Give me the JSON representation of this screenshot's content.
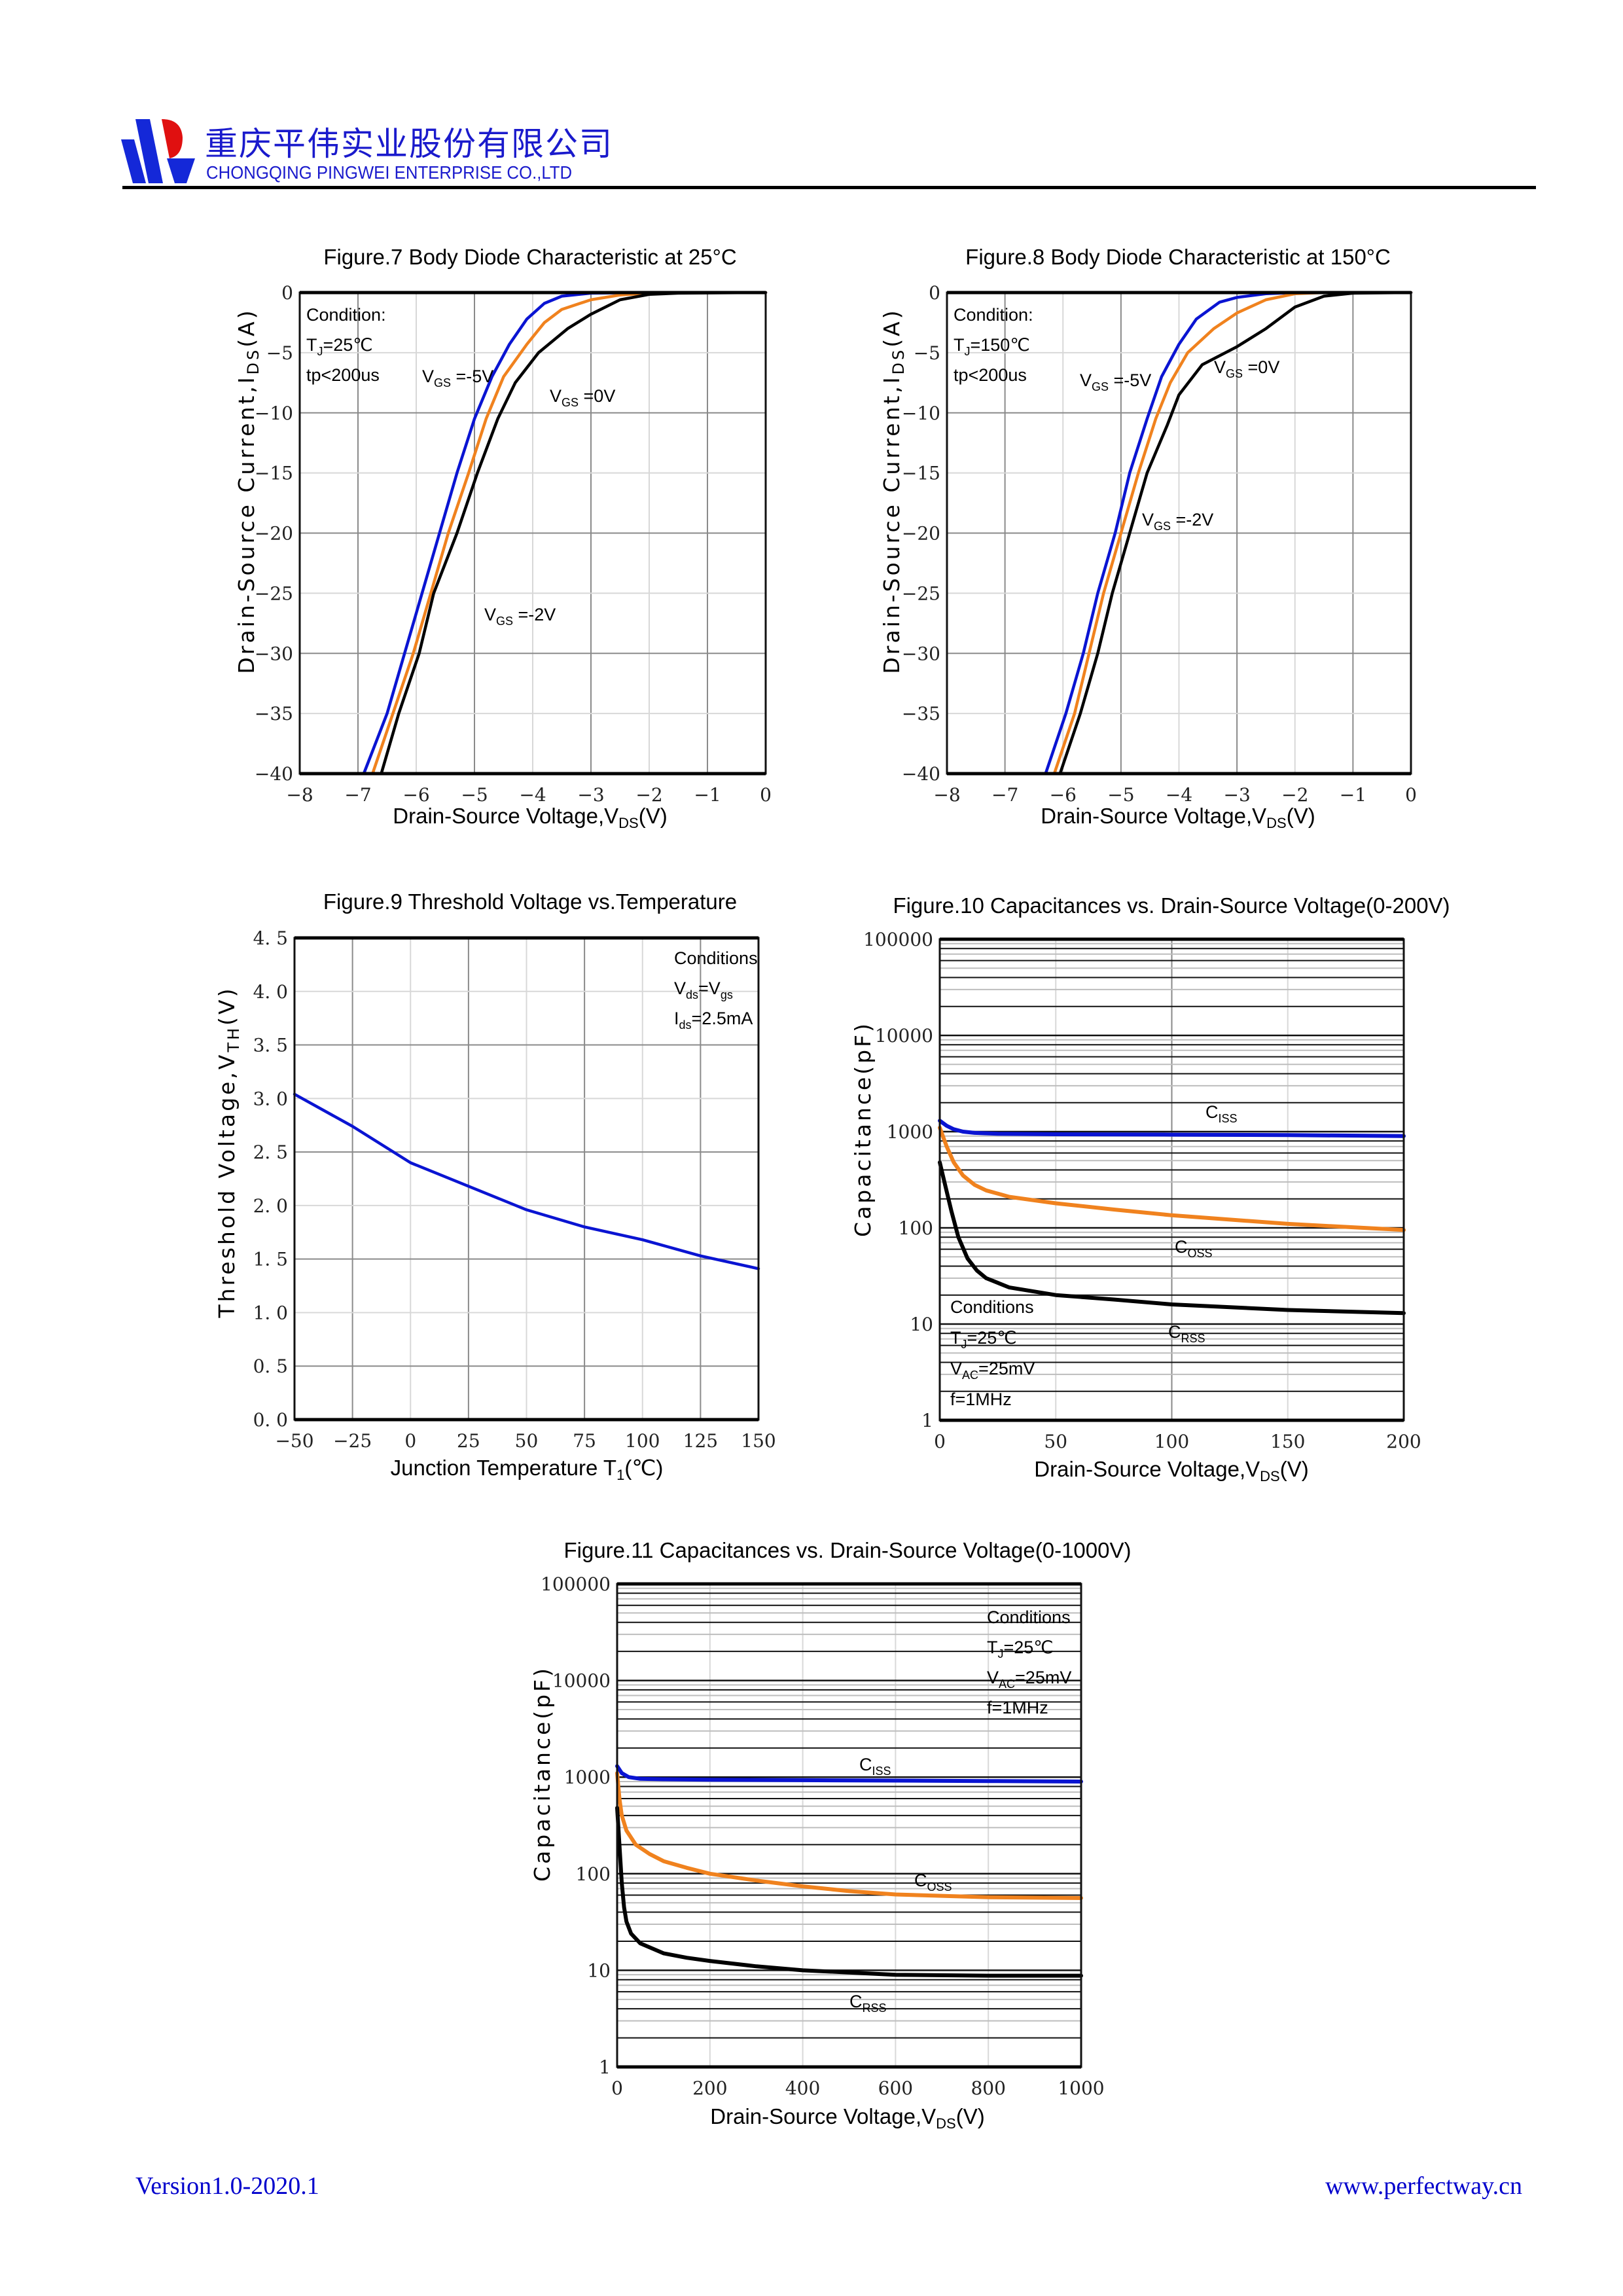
{
  "header": {
    "company_cn": "重庆平伟实业股份有限公司",
    "company_en": "CHONGQING PINGWEI ENTERPRISE CO.,LTD",
    "logo_colors": {
      "blue": "#1428d8",
      "red": "#e01010"
    }
  },
  "footer": {
    "version": "Version1.0-2020.1",
    "website": "www.perfectway.cn"
  },
  "colors": {
    "blue": "#0a14d2",
    "orange": "#f0821e",
    "black": "#000000"
  },
  "chart_data": [
    {
      "id": "fig7",
      "type": "line",
      "title": "Figure.7 Body Diode Characteristic at 25°C",
      "xlabel": {
        "main": "Drain-Source Voltage,V",
        "sub": "DS",
        "tail": "(V)"
      },
      "ylabel": {
        "main": "Drain-Source Current,I",
        "sub": "DS",
        "tail": "(A)"
      },
      "xlim": [
        -8,
        0
      ],
      "ylim": [
        -40,
        0
      ],
      "xticks": [
        "−8",
        "−7",
        "−6",
        "−5",
        "−4",
        "−3",
        "−2",
        "−1",
        "0"
      ],
      "yticks": [
        "0",
        "−5",
        "−10",
        "−15",
        "−20",
        "−25",
        "−30",
        "−35",
        "−40"
      ],
      "grid": true,
      "conditions": [
        "Condition:",
        {
          "main": "T",
          "sub": "J",
          "tail": "=25℃"
        },
        "tp<200us"
      ],
      "series": [
        {
          "name": "VGS=-5V",
          "label": {
            "main": "V",
            "sub": "GS",
            "tail": " =-5V"
          },
          "color": "#0a14d2",
          "x": [
            -6.9,
            -6.5,
            -6.2,
            -5.9,
            -5.6,
            -5.3,
            -5.0,
            -4.7,
            -4.4,
            -4.1,
            -3.8,
            -3.5,
            -3.0,
            -2.0,
            0
          ],
          "y": [
            -40,
            -35,
            -30,
            -25,
            -20,
            -15,
            -10.5,
            -7,
            -4.3,
            -2.2,
            -0.9,
            -0.3,
            -0.05,
            0,
            0
          ]
        },
        {
          "name": "VGS=-2V",
          "label": {
            "main": "V",
            "sub": "GS",
            "tail": " =-2V"
          },
          "color": "#f0821e",
          "x": [
            -6.75,
            -6.4,
            -6.05,
            -5.75,
            -5.45,
            -5.1,
            -4.8,
            -4.5,
            -4.1,
            -3.8,
            -3.5,
            -3.0,
            -2.5,
            -2.0,
            -1.5,
            0
          ],
          "y": [
            -40,
            -35,
            -30,
            -25,
            -20,
            -15,
            -10.5,
            -7,
            -4.3,
            -2.5,
            -1.4,
            -0.6,
            -0.2,
            -0.05,
            0,
            0
          ]
        },
        {
          "name": "VGS=0V",
          "label": {
            "main": "V",
            "sub": "GS",
            "tail": " =0V"
          },
          "color": "#000000",
          "x": [
            -6.6,
            -6.3,
            -5.95,
            -5.7,
            -5.3,
            -4.95,
            -4.6,
            -4.3,
            -3.9,
            -3.4,
            -3.0,
            -2.5,
            -2.0,
            -1.5,
            0
          ],
          "y": [
            -40,
            -35,
            -30,
            -25,
            -20,
            -15,
            -10.5,
            -7.5,
            -5,
            -3,
            -1.8,
            -0.6,
            -0.15,
            -0.05,
            0
          ]
        }
      ]
    },
    {
      "id": "fig8",
      "type": "line",
      "title": "Figure.8 Body Diode Characteristic at 150°C",
      "xlabel": {
        "main": "Drain-Source Voltage,V",
        "sub": "DS",
        "tail": "(V)"
      },
      "ylabel": {
        "main": "Drain-Source Current,I",
        "sub": "DS",
        "tail": "(A)"
      },
      "xlim": [
        -8,
        0
      ],
      "ylim": [
        -40,
        0
      ],
      "xticks": [
        "−8",
        "−7",
        "−6",
        "−5",
        "−4",
        "−3",
        "−2",
        "−1",
        "0"
      ],
      "yticks": [
        "0",
        "−5",
        "−10",
        "−15",
        "−20",
        "−25",
        "−30",
        "−35",
        "−40"
      ],
      "grid": true,
      "conditions": [
        "Condition:",
        {
          "main": "T",
          "sub": "J",
          "tail": "=150℃"
        },
        "tp<200us"
      ],
      "series": [
        {
          "name": "VGS=-5V",
          "label": {
            "main": "V",
            "sub": "GS",
            "tail": " =-5V"
          },
          "color": "#0a14d2",
          "x": [
            -6.3,
            -5.95,
            -5.65,
            -5.4,
            -5.1,
            -4.85,
            -4.55,
            -4.3,
            -4.0,
            -3.7,
            -3.3,
            -3.0,
            -2.5,
            -2.0,
            0
          ],
          "y": [
            -40,
            -35,
            -30,
            -25,
            -20,
            -15,
            -10.5,
            -7,
            -4.3,
            -2.2,
            -0.8,
            -0.4,
            -0.1,
            0,
            0
          ]
        },
        {
          "name": "VGS=-2V",
          "label": {
            "main": "V",
            "sub": "GS",
            "tail": " =-2V"
          },
          "color": "#f0821e",
          "x": [
            -6.15,
            -5.8,
            -5.55,
            -5.3,
            -5.0,
            -4.7,
            -4.4,
            -4.15,
            -3.85,
            -3.4,
            -3.0,
            -2.5,
            -2.0,
            -1.5,
            0
          ],
          "y": [
            -40,
            -35,
            -30,
            -25,
            -20,
            -15,
            -10.5,
            -7.5,
            -5,
            -3,
            -1.7,
            -0.6,
            -0.1,
            0,
            0
          ]
        },
        {
          "name": "VGS=0V",
          "label": {
            "main": "V",
            "sub": "GS",
            "tail": " =0V"
          },
          "color": "#000000",
          "x": [
            -6.05,
            -5.7,
            -5.4,
            -5.15,
            -4.85,
            -4.55,
            -4.2,
            -4.0,
            -3.6,
            -3.0,
            -2.5,
            -2.0,
            -1.5,
            -1.0,
            0
          ],
          "y": [
            -40,
            -35,
            -30,
            -25,
            -20,
            -15,
            -11,
            -8.5,
            -6,
            -4.5,
            -3,
            -1.2,
            -0.3,
            -0.05,
            0
          ]
        }
      ]
    },
    {
      "id": "fig9",
      "type": "line",
      "title": "Figure.9 Threshold Voltage vs.Temperature",
      "xlabel": {
        "main": "Junction Temperature T",
        "sub": "1",
        "tail": "(℃)"
      },
      "ylabel": {
        "main": "Threshold Voltage,V",
        "sub": "TH",
        "tail": "(V)"
      },
      "xlim": [
        -50,
        150
      ],
      "ylim": [
        0,
        4.5
      ],
      "xticks": [
        "−50",
        "−25",
        "0",
        "25",
        "50",
        "75",
        "100",
        "125",
        "150"
      ],
      "yticks": [
        "0. 0",
        "0. 5",
        "1. 0",
        "1. 5",
        "2. 0",
        "2. 5",
        "3. 0",
        "3. 5",
        "4. 0",
        "4. 5"
      ],
      "grid": true,
      "conditions": [
        "Conditions",
        {
          "main": "V",
          "sub": "ds",
          "tail": "=V",
          "sub2": "gs"
        },
        {
          "main": "I",
          "sub": "ds",
          "tail": "=2.5mA"
        }
      ],
      "series": [
        {
          "name": "VTH",
          "color": "#0a14d2",
          "x": [
            -50,
            -25,
            0,
            25,
            50,
            75,
            100,
            125,
            150
          ],
          "y": [
            3.04,
            2.74,
            2.4,
            2.18,
            1.96,
            1.8,
            1.68,
            1.53,
            1.41
          ]
        }
      ]
    },
    {
      "id": "fig10",
      "type": "line",
      "title": "Figure.10 Capacitances vs. Drain-Source Voltage(0-200V)",
      "xlabel": {
        "main": "Drain-Source Voltage,V",
        "sub": "DS",
        "tail": "(V)"
      },
      "ylabel": {
        "main": "Capacitance(pF)"
      },
      "xlim": [
        0,
        200
      ],
      "ylim": [
        1,
        100000
      ],
      "yscale": "log",
      "xticks": [
        "0",
        "50",
        "100",
        "150",
        "200"
      ],
      "yticks": [
        "1",
        "10",
        "100",
        "1000",
        "10000",
        "100000"
      ],
      "grid": true,
      "conditions": [
        "Conditions",
        {
          "main": "T",
          "sub": "J",
          "tail": "=25℃"
        },
        {
          "main": "V",
          "sub": "AC",
          "tail": "=25mV"
        },
        "f=1MHz"
      ],
      "series": [
        {
          "name": "CISS",
          "label": {
            "main": "C",
            "sub": "ISS"
          },
          "color": "#0a14d2",
          "x": [
            0,
            3,
            6,
            10,
            15,
            25,
            50,
            100,
            150,
            200
          ],
          "y": [
            1300,
            1150,
            1060,
            1000,
            970,
            950,
            940,
            930,
            920,
            900
          ]
        },
        {
          "name": "COSS",
          "label": {
            "main": "C",
            "sub": "OSS"
          },
          "color": "#f0821e",
          "x": [
            0,
            3,
            6,
            10,
            15,
            20,
            30,
            50,
            75,
            100,
            150,
            200
          ],
          "y": [
            1100,
            700,
            480,
            350,
            280,
            245,
            210,
            180,
            155,
            135,
            110,
            95
          ]
        },
        {
          "name": "CRSS",
          "label": {
            "main": "C",
            "sub": "RSS"
          },
          "color": "#000000",
          "x": [
            0,
            2,
            5,
            8,
            12,
            16,
            20,
            30,
            50,
            75,
            100,
            150,
            200
          ],
          "y": [
            480,
            300,
            150,
            80,
            48,
            36,
            30,
            24,
            20,
            18,
            16,
            14,
            13
          ]
        }
      ]
    },
    {
      "id": "fig11",
      "type": "line",
      "title": "Figure.11 Capacitances vs. Drain-Source Voltage(0-1000V)",
      "xlabel": {
        "main": "Drain-Source Voltage,V",
        "sub": "DS",
        "tail": "(V)"
      },
      "ylabel": {
        "main": "Capacitance(pF)"
      },
      "xlim": [
        0,
        1000
      ],
      "ylim": [
        1,
        100000
      ],
      "yscale": "log",
      "xticks": [
        "0",
        "200",
        "400",
        "600",
        "800",
        "1000"
      ],
      "yticks": [
        "1",
        "10",
        "100",
        "1000",
        "10000",
        "100000"
      ],
      "grid": true,
      "conditions": [
        "Conditions",
        {
          "main": "T",
          "sub": "J",
          "tail": "=25℃"
        },
        {
          "main": "V",
          "sub": "AC",
          "tail": "=25mV"
        },
        "f=1MHz"
      ],
      "series": [
        {
          "name": "CISS",
          "label": {
            "main": "C",
            "sub": "ISS"
          },
          "color": "#0a14d2",
          "x": [
            0,
            10,
            25,
            50,
            100,
            200,
            400,
            600,
            800,
            1000
          ],
          "y": [
            1300,
            1100,
            1000,
            960,
            950,
            940,
            930,
            920,
            910,
            900
          ]
        },
        {
          "name": "COSS",
          "label": {
            "main": "C",
            "sub": "OSS"
          },
          "color": "#f0821e",
          "x": [
            0,
            5,
            10,
            20,
            40,
            70,
            100,
            150,
            200,
            300,
            400,
            500,
            600,
            800,
            1000
          ],
          "y": [
            1100,
            600,
            400,
            280,
            200,
            160,
            135,
            115,
            100,
            85,
            74,
            66,
            61,
            57,
            56
          ]
        },
        {
          "name": "CRSS",
          "label": {
            "main": "C",
            "sub": "RSS"
          },
          "color": "#000000",
          "x": [
            0,
            5,
            10,
            15,
            20,
            30,
            50,
            100,
            150,
            200,
            300,
            400,
            500,
            600,
            800,
            1000
          ],
          "y": [
            480,
            200,
            80,
            45,
            32,
            24,
            19,
            15,
            13.5,
            12.5,
            11,
            10,
            9.5,
            9,
            8.8,
            8.8
          ]
        }
      ]
    }
  ]
}
